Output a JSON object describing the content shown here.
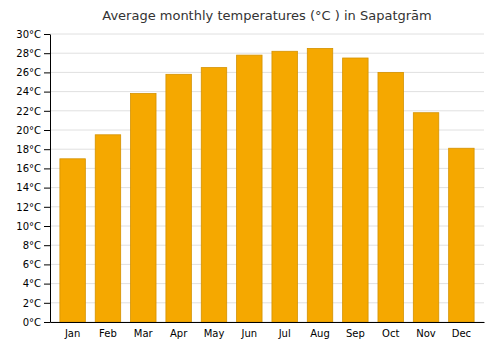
{
  "chart_data": {
    "type": "bar",
    "title": "Average monthly temperatures (°C ) in Sapatgrām",
    "categories": [
      "Jan",
      "Feb",
      "Mar",
      "Apr",
      "May",
      "Jun",
      "Jul",
      "Aug",
      "Sep",
      "Oct",
      "Nov",
      "Dec"
    ],
    "values": [
      17.0,
      19.5,
      23.8,
      25.8,
      26.5,
      27.8,
      28.2,
      28.5,
      27.5,
      26.0,
      21.8,
      18.1
    ],
    "color": "#F5A800",
    "ylim": [
      0,
      30
    ],
    "yticks": [
      {
        "value": 0,
        "label": "0°C"
      },
      {
        "value": 2,
        "label": "2°C"
      },
      {
        "value": 4,
        "label": "4°C"
      },
      {
        "value": 6,
        "label": "6°C"
      },
      {
        "value": 8,
        "label": "8°C"
      },
      {
        "value": 10,
        "label": "10°C"
      },
      {
        "value": 12,
        "label": "12°C"
      },
      {
        "value": 14,
        "label": "14°C"
      },
      {
        "value": 16,
        "label": "16°C"
      },
      {
        "value": 18,
        "label": "18°C"
      },
      {
        "value": 20,
        "label": "20°C"
      },
      {
        "value": 22,
        "label": "22°C"
      },
      {
        "value": 24,
        "label": "24°C"
      },
      {
        "value": 26,
        "label": "26°C"
      },
      {
        "value": 28,
        "label": "28°C"
      },
      {
        "value": 30,
        "label": "30°C"
      }
    ],
    "grid": true
  }
}
